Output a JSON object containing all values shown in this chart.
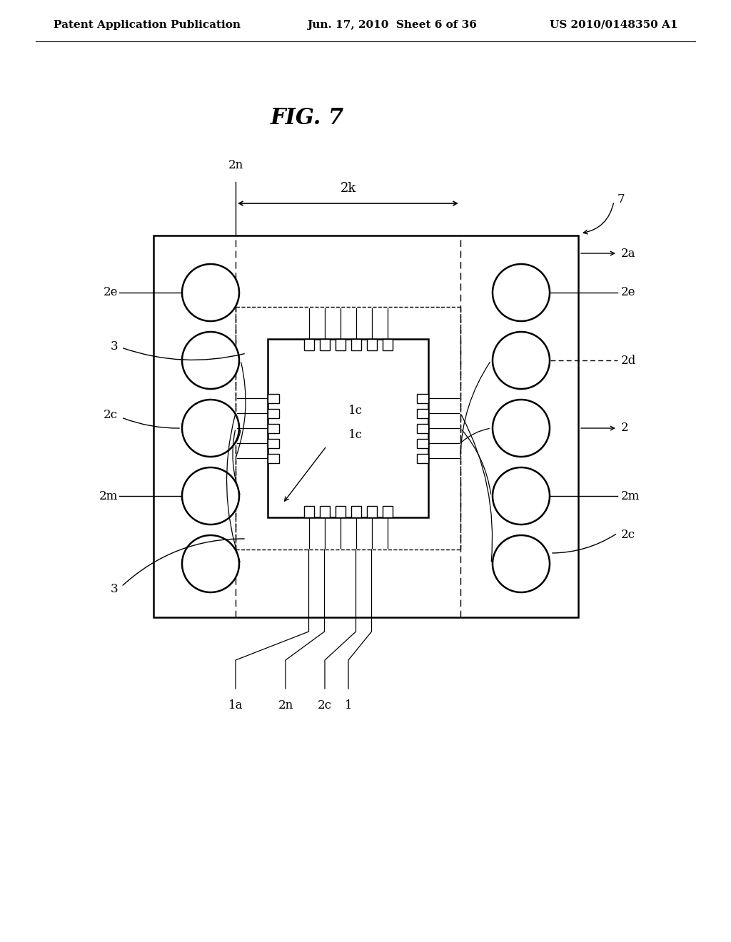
{
  "title": "FIG. 7",
  "header_left": "Patent Application Publication",
  "header_mid": "Jun. 17, 2010  Sheet 6 of 36",
  "header_right": "US 2010/0148350 A1",
  "bg_color": "#ffffff",
  "line_color": "#000000",
  "fig_title_fontsize": 22,
  "header_fontsize": 11,
  "label_fontsize": 12
}
